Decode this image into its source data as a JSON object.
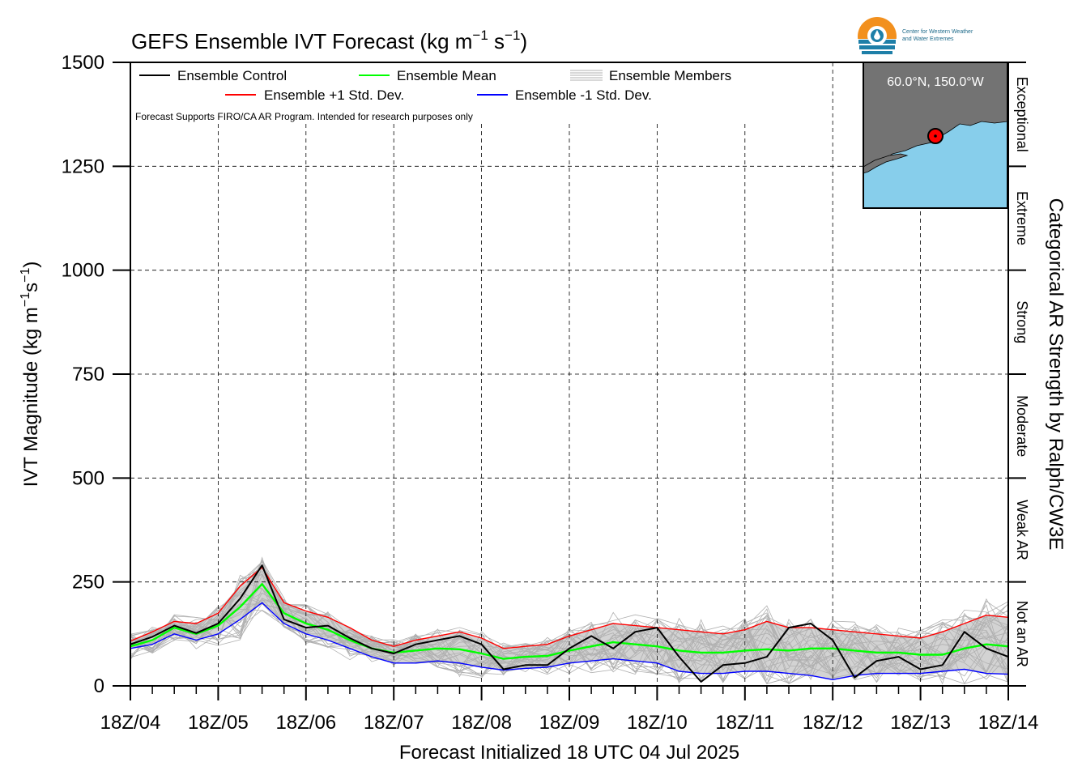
{
  "title_main": "GEFS Ensemble IVT Forecast (kg m",
  "title_sup1": "−1",
  "title_mid": " s",
  "title_sup2": "−1",
  "title_end": ")",
  "ylabel_main": "IVT Magnitude (kg m",
  "ylabel_sup1": "−1",
  "ylabel_mid": "s",
  "ylabel_sup2": "−1",
  "ylabel_end": ")",
  "xlabel": "Forecast Initialized 18 UTC 04 Jul 2025",
  "right_label": "Categorical AR Strength by Ralph/CW3E",
  "note": "Forecast Supports FIRO/CA AR Program. Intended for research purposes only",
  "legend": {
    "control": "Ensemble Control",
    "mean": "Ensemble Mean",
    "members": "Ensemble Members",
    "plus_sd": "Ensemble +1 Std. Dev.",
    "minus_sd": "Ensemble -1 Std. Dev."
  },
  "inset": {
    "label": "60.0°N, 150.0°W"
  },
  "logo": {
    "line1": "Center for Western Weather",
    "line2": "and Water Extremes"
  },
  "colors": {
    "control": "#000000",
    "mean": "#00ff00",
    "plus_sd": "#ff0000",
    "minus_sd": "#0000ff",
    "members": "#b0b0b0",
    "spread_fill": "#d3d3d3",
    "land": "#737373",
    "ocean": "#87ceeb"
  },
  "categories": [
    {
      "label": "Not an AR",
      "from": 0,
      "to": 250
    },
    {
      "label": "Weak AR",
      "from": 250,
      "to": 500
    },
    {
      "label": "Moderate",
      "from": 500,
      "to": 750
    },
    {
      "label": "Strong",
      "from": 750,
      "to": 1000
    },
    {
      "label": "Extreme",
      "from": 1000,
      "to": 1250
    },
    {
      "label": "Exceptional",
      "from": 1250,
      "to": 1500
    }
  ],
  "chart_data": {
    "type": "line",
    "title": "GEFS Ensemble IVT Forecast (kg m−1 s−1)",
    "xlabel": "Forecast Initialized 18 UTC 04 Jul 2025",
    "ylabel": "IVT Magnitude (kg m−1s−1)",
    "ylim": [
      0,
      1500
    ],
    "yticks": [
      0,
      250,
      500,
      750,
      1000,
      1250,
      1500
    ],
    "xlim": [
      0,
      240
    ],
    "x_ticks": [
      0,
      24,
      48,
      72,
      96,
      120,
      144,
      168,
      192,
      216,
      240
    ],
    "x_tick_labels": [
      "18Z/04",
      "18Z/05",
      "18Z/06",
      "18Z/07",
      "18Z/08",
      "18Z/09",
      "18Z/10",
      "18Z/11",
      "18Z/12",
      "18Z/13",
      "18Z/14"
    ],
    "grid": true,
    "legend_position": "top-left",
    "x": [
      0,
      6,
      12,
      18,
      24,
      30,
      36,
      42,
      48,
      54,
      60,
      66,
      72,
      78,
      84,
      90,
      96,
      102,
      108,
      114,
      120,
      126,
      132,
      138,
      144,
      150,
      156,
      162,
      168,
      174,
      180,
      186,
      192,
      198,
      204,
      210,
      216,
      222,
      228,
      234,
      240
    ],
    "series": [
      {
        "name": "Ensemble Control",
        "values": [
          100,
          118,
          145,
          127,
          150,
          210,
          290,
          160,
          140,
          145,
          115,
          90,
          78,
          100,
          110,
          120,
          100,
          40,
          50,
          50,
          90,
          120,
          90,
          130,
          140,
          70,
          10,
          50,
          55,
          70,
          140,
          150,
          110,
          20,
          60,
          70,
          40,
          50,
          130,
          90,
          70
        ]
      },
      {
        "name": "Ensemble Mean",
        "values": [
          95,
          110,
          140,
          125,
          145,
          190,
          245,
          175,
          150,
          135,
          110,
          90,
          80,
          85,
          90,
          88,
          78,
          65,
          70,
          72,
          85,
          95,
          105,
          100,
          95,
          85,
          80,
          80,
          85,
          88,
          85,
          90,
          90,
          85,
          80,
          80,
          75,
          75,
          90,
          100,
          95
        ]
      },
      {
        "name": "Ensemble +1 Std. Dev.",
        "values": [
          108,
          130,
          155,
          150,
          175,
          240,
          285,
          200,
          180,
          165,
          140,
          110,
          95,
          110,
          120,
          130,
          115,
          90,
          95,
          100,
          120,
          135,
          150,
          145,
          140,
          135,
          130,
          125,
          135,
          155,
          140,
          140,
          135,
          130,
          125,
          120,
          115,
          130,
          150,
          170,
          165
        ]
      },
      {
        "name": "Ensemble -1 Std. Dev.",
        "values": [
          90,
          100,
          125,
          110,
          125,
          160,
          200,
          150,
          125,
          110,
          90,
          70,
          55,
          55,
          60,
          55,
          45,
          38,
          42,
          45,
          55,
          60,
          65,
          60,
          55,
          35,
          30,
          30,
          35,
          35,
          30,
          25,
          15,
          25,
          30,
          30,
          30,
          35,
          40,
          30,
          28
        ]
      }
    ]
  }
}
